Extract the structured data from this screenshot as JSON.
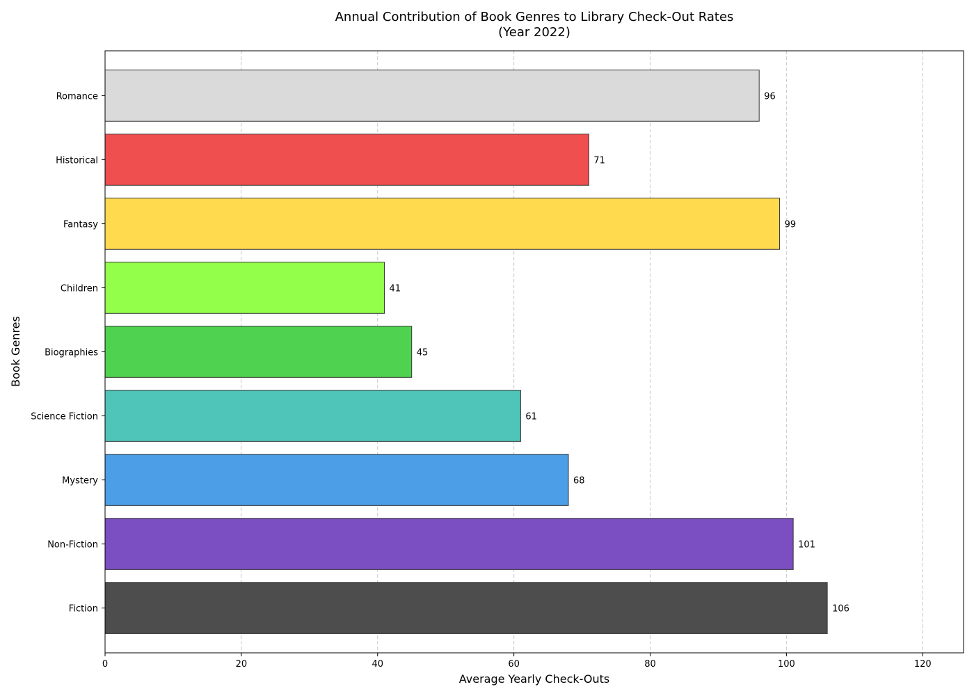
{
  "chart_data": {
    "type": "bar",
    "orientation": "horizontal",
    "title": "Annual Contribution of Book Genres to Library Check-Out Rates",
    "subtitle": "(Year 2022)",
    "xlabel": "Average Yearly Check-Outs",
    "ylabel": "Book Genres",
    "xlim": [
      0,
      126
    ],
    "xticks": [
      0,
      20,
      40,
      60,
      80,
      100,
      120
    ],
    "grid": {
      "x": true,
      "y": false,
      "style": "dashed"
    },
    "categories": [
      "Fiction",
      "Non-Fiction",
      "Mystery",
      "Science Fiction",
      "Biographies",
      "Children",
      "Fantasy",
      "Historical",
      "Romance"
    ],
    "values": [
      106,
      101,
      68,
      61,
      45,
      41,
      99,
      71,
      96
    ],
    "data_labels": [
      "106",
      "101",
      "68",
      "61",
      "45",
      "41",
      "99",
      "71",
      "96"
    ],
    "colors": [
      "#4d4d4d",
      "#7b4fc1",
      "#4c9fe6",
      "#4fc4b8",
      "#4fd24f",
      "#93ff4a",
      "#ffda4f",
      "#f04f4f",
      "#dadada"
    ],
    "edge_color": "#333333"
  }
}
